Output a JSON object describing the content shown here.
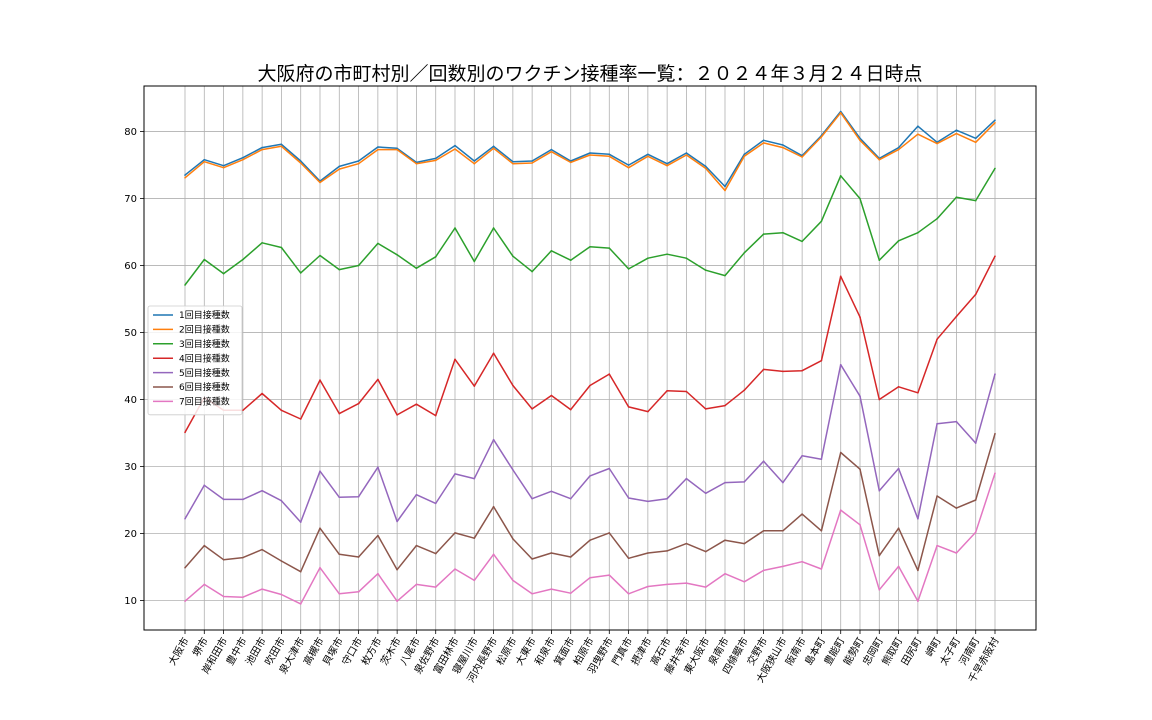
{
  "chart_data": {
    "type": "line",
    "title": "大阪府の市町村別／回数別のワクチン接種率一覧：２０２４年３月２４日時点",
    "xlabel": "",
    "ylabel": "",
    "ylim": [
      5.6,
      86.8
    ],
    "yticks": [
      10,
      20,
      30,
      40,
      50,
      60,
      70,
      80
    ],
    "grid": true,
    "legend_position": "center-left",
    "categories": [
      "大阪市",
      "堺市",
      "岸和田市",
      "豊中市",
      "池田市",
      "吹田市",
      "泉大津市",
      "高槻市",
      "貝塚市",
      "守口市",
      "枚方市",
      "茨木市",
      "八尾市",
      "泉佐野市",
      "富田林市",
      "寝屋川市",
      "河内長野市",
      "松原市",
      "大東市",
      "和泉市",
      "箕面市",
      "柏原市",
      "羽曳野市",
      "門真市",
      "摂津市",
      "高石市",
      "藤井寺市",
      "東大阪市",
      "泉南市",
      "四條畷市",
      "交野市",
      "大阪狭山市",
      "阪南市",
      "島本町",
      "豊能町",
      "能勢町",
      "忠岡町",
      "熊取町",
      "田尻町",
      "岬町",
      "太子町",
      "河南町",
      "千早赤阪村"
    ],
    "series": [
      {
        "name": "1回目接種数",
        "color": "#1f77b4",
        "values": [
          73.5,
          75.8,
          74.9,
          76.1,
          77.6,
          78.1,
          75.6,
          72.6,
          74.8,
          75.6,
          77.7,
          77.5,
          75.4,
          76.0,
          77.9,
          75.6,
          77.8,
          75.5,
          75.6,
          77.3,
          75.6,
          76.8,
          76.6,
          75.0,
          76.6,
          75.2,
          76.8,
          74.8,
          71.8,
          76.6,
          78.7,
          78.0,
          76.4,
          79.4,
          83.0,
          79.0,
          76.0,
          77.6,
          80.8,
          78.4,
          80.2,
          79.0,
          81.7
        ]
      },
      {
        "name": "2回目接種数",
        "color": "#ff7f0e",
        "values": [
          73.1,
          75.5,
          74.6,
          75.8,
          77.3,
          77.8,
          75.3,
          72.4,
          74.4,
          75.2,
          77.3,
          77.3,
          75.2,
          75.7,
          77.4,
          75.2,
          77.5,
          75.2,
          75.3,
          77.0,
          75.4,
          76.5,
          76.3,
          74.6,
          76.3,
          74.9,
          76.5,
          74.5,
          71.2,
          76.3,
          78.3,
          77.6,
          76.2,
          79.2,
          82.8,
          78.7,
          75.8,
          77.3,
          79.6,
          78.2,
          79.7,
          78.4,
          81.3
        ]
      },
      {
        "name": "3回目接種数",
        "color": "#2ca02c",
        "values": [
          57.1,
          60.9,
          58.8,
          60.9,
          63.4,
          62.7,
          58.9,
          61.5,
          59.4,
          60.0,
          63.3,
          61.6,
          59.6,
          61.3,
          65.6,
          60.6,
          65.6,
          61.4,
          59.1,
          62.2,
          60.8,
          62.8,
          62.6,
          59.5,
          61.1,
          61.7,
          61.1,
          59.3,
          58.5,
          61.9,
          64.7,
          64.9,
          63.6,
          66.6,
          73.4,
          70.0,
          60.8,
          63.7,
          64.9,
          67.0,
          70.2,
          69.7,
          74.5
        ]
      },
      {
        "name": "4回目接種数",
        "color": "#d62728",
        "values": [
          35.1,
          40.3,
          38.4,
          38.4,
          40.9,
          38.4,
          37.1,
          42.9,
          37.9,
          39.4,
          43.0,
          37.7,
          39.3,
          37.6,
          46.0,
          42.0,
          46.9,
          42.1,
          38.6,
          40.6,
          38.5,
          42.1,
          43.8,
          38.9,
          38.2,
          41.3,
          41.2,
          38.6,
          39.1,
          41.4,
          44.5,
          44.2,
          44.3,
          45.8,
          58.4,
          52.3,
          40.0,
          41.9,
          41.0,
          49.0,
          52.4,
          55.7,
          61.4
        ]
      },
      {
        "name": "5回目接種数",
        "color": "#9467bd",
        "values": [
          22.2,
          27.2,
          25.1,
          25.1,
          26.4,
          24.9,
          21.7,
          29.3,
          25.4,
          25.5,
          29.9,
          21.8,
          25.8,
          24.5,
          28.9,
          28.2,
          34.0,
          29.5,
          25.2,
          26.3,
          25.2,
          28.6,
          29.7,
          25.3,
          24.8,
          25.2,
          28.2,
          26.0,
          27.6,
          27.7,
          30.8,
          27.6,
          31.6,
          31.1,
          45.2,
          40.5,
          26.4,
          29.7,
          22.2,
          36.4,
          36.7,
          33.5,
          43.8
        ]
      },
      {
        "name": "6回目接種数",
        "color": "#8c564b",
        "values": [
          14.9,
          18.2,
          16.1,
          16.4,
          17.6,
          15.9,
          14.3,
          20.8,
          16.9,
          16.5,
          19.7,
          14.6,
          18.2,
          17.0,
          20.1,
          19.3,
          24.0,
          19.2,
          16.2,
          17.1,
          16.5,
          19.0,
          20.1,
          16.3,
          17.1,
          17.4,
          18.5,
          17.3,
          19.0,
          18.5,
          20.4,
          20.4,
          22.9,
          20.4,
          32.1,
          29.6,
          16.7,
          20.8,
          14.5,
          25.6,
          23.8,
          25.0,
          34.9
        ]
      },
      {
        "name": "7回目接種数",
        "color": "#e377c2",
        "values": [
          9.9,
          12.4,
          10.6,
          10.5,
          11.7,
          10.9,
          9.5,
          14.9,
          11.0,
          11.3,
          14.0,
          9.9,
          12.4,
          12.0,
          14.7,
          13.0,
          16.9,
          13.0,
          11.0,
          11.7,
          11.1,
          13.4,
          13.8,
          11.0,
          12.1,
          12.4,
          12.6,
          12.0,
          14.0,
          12.8,
          14.5,
          15.1,
          15.8,
          14.7,
          23.5,
          21.3,
          11.6,
          15.1,
          9.9,
          18.2,
          17.1,
          20.2,
          29.0
        ]
      }
    ]
  }
}
